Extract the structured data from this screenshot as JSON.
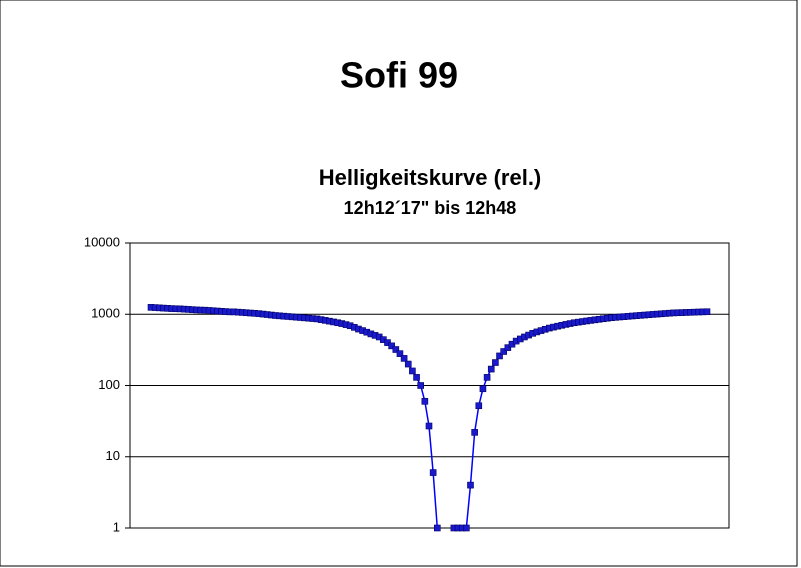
{
  "chart_data": {
    "type": "line",
    "title": "Sofi 99",
    "subtitle": "Helligkeitskurve (rel.)",
    "subtitle2": "12h12´17\" bis 12h48",
    "log_scale_y": true,
    "grid": true,
    "ylim": [
      1,
      10000
    ],
    "yticks": [
      1,
      10,
      100,
      1000,
      10000
    ],
    "series": [
      {
        "color": "#0000ff",
        "marker_color": "#1a1acc",
        "values": [
          1250,
          1240,
          1230,
          1220,
          1210,
          1200,
          1195,
          1190,
          1180,
          1170,
          1160,
          1150,
          1145,
          1140,
          1130,
          1120,
          1110,
          1100,
          1090,
          1080,
          1080,
          1070,
          1060,
          1050,
          1040,
          1030,
          1020,
          1005,
          990,
          975,
          960,
          950,
          940,
          930,
          920,
          910,
          900,
          890,
          880,
          870,
          860,
          840,
          820,
          800,
          780,
          760,
          740,
          715,
          690,
          655,
          620,
          590,
          560,
          530,
          505,
          480,
          440,
          400,
          360,
          320,
          280,
          240,
          200,
          160,
          130,
          100,
          60,
          27,
          6,
          1,
          null,
          null,
          null,
          1,
          1,
          1,
          1,
          4,
          22,
          52,
          90,
          130,
          170,
          210,
          260,
          300,
          340,
          380,
          420,
          450,
          480,
          510,
          540,
          565,
          590,
          615,
          640,
          660,
          680,
          700,
          720,
          740,
          760,
          775,
          790,
          805,
          820,
          835,
          850,
          865,
          880,
          895,
          905,
          915,
          925,
          935,
          945,
          955,
          965,
          975,
          985,
          995,
          1005,
          1015,
          1025,
          1035,
          1045,
          1050,
          1055,
          1060,
          1065,
          1070,
          1075,
          1080,
          1085
        ]
      }
    ]
  }
}
